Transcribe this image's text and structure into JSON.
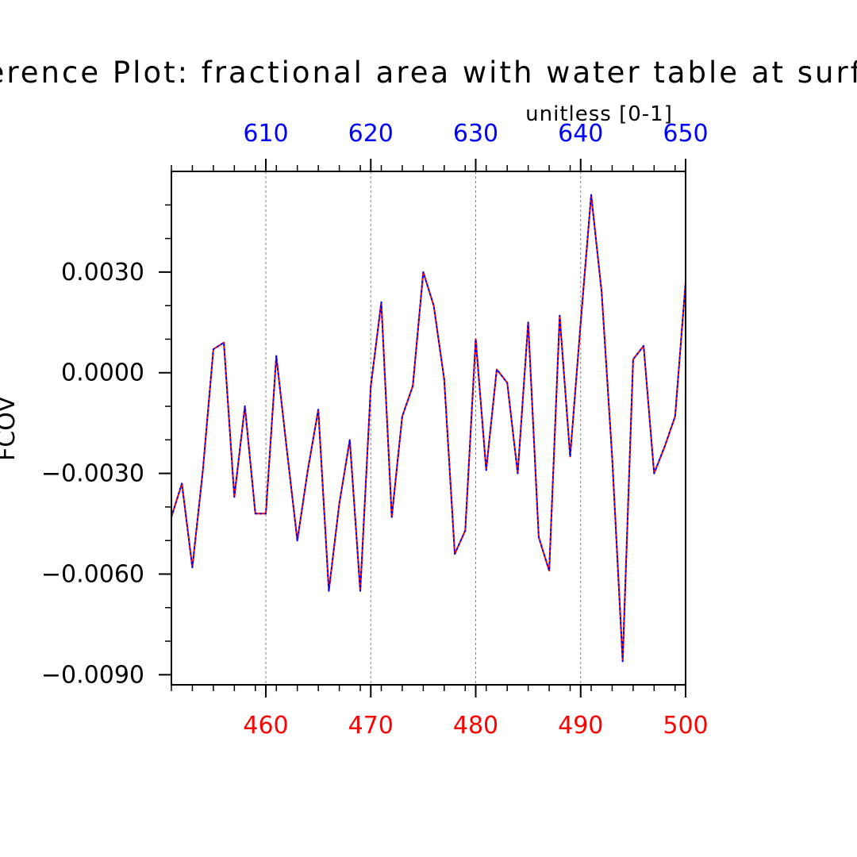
{
  "chart_data": {
    "type": "line",
    "title": "ference Plot: fractional area with water table at surfa",
    "units_label": "unitless [0-1]",
    "ylabel": "FCOV",
    "xlabel": "",
    "xlim": [
      451,
      500
    ],
    "x2lim": [
      601,
      650
    ],
    "ylim": [
      -0.0093,
      0.006
    ],
    "x_ticks": [
      "460",
      "470",
      "480",
      "490",
      "500"
    ],
    "x_tick_values": [
      460,
      470,
      480,
      490,
      500
    ],
    "x2_ticks": [
      "610",
      "620",
      "630",
      "640",
      "650"
    ],
    "x2_tick_values": [
      610,
      620,
      630,
      640,
      650
    ],
    "y_ticks": [
      "0.0030",
      "0.0000",
      "−0.0030",
      "−0.0060",
      "−0.0090"
    ],
    "y_tick_values": [
      0.003,
      0.0,
      -0.003,
      -0.006,
      -0.009
    ],
    "grid": "vertical dashed at major x ticks",
    "x": [
      451,
      452,
      453,
      454,
      455,
      456,
      457,
      458,
      459,
      460,
      461,
      462,
      463,
      464,
      465,
      466,
      467,
      468,
      469,
      470,
      471,
      472,
      473,
      474,
      475,
      476,
      477,
      478,
      479,
      480,
      481,
      482,
      483,
      484,
      485,
      486,
      487,
      488,
      489,
      490,
      491,
      492,
      493,
      494,
      495,
      496,
      497,
      498,
      499,
      500
    ],
    "series": [
      {
        "name": "bottom-axis series",
        "color": "#ff0000",
        "values": [
          -0.0043,
          -0.0033,
          -0.0058,
          -0.0029,
          0.0007,
          0.0009,
          -0.0037,
          -0.001,
          -0.0042,
          -0.0042,
          0.0005,
          -0.0023,
          -0.005,
          -0.0029,
          -0.0011,
          -0.0065,
          -0.0039,
          -0.002,
          -0.0065,
          -0.0004,
          0.0021,
          -0.0043,
          -0.0013,
          -0.0004,
          0.003,
          0.002,
          -0.0002,
          -0.0054,
          -0.0047,
          0.001,
          -0.0029,
          0.0001,
          -0.0003,
          -0.003,
          0.0015,
          -0.0049,
          -0.0059,
          0.0017,
          -0.0025,
          0.0015,
          0.0053,
          0.0024,
          -0.0025,
          -0.0086,
          0.0004,
          0.0008,
          -0.003,
          -0.0022,
          -0.0013,
          0.0027
        ]
      },
      {
        "name": "top-axis series",
        "color": "#0000ff",
        "values": [
          -0.0043,
          -0.0033,
          -0.0058,
          -0.0029,
          0.0007,
          0.0009,
          -0.0037,
          -0.001,
          -0.0042,
          -0.0042,
          0.0005,
          -0.0023,
          -0.005,
          -0.0029,
          -0.0011,
          -0.0065,
          -0.0039,
          -0.002,
          -0.0065,
          -0.0004,
          0.0021,
          -0.0043,
          -0.0013,
          -0.0004,
          0.003,
          0.002,
          -0.0002,
          -0.0054,
          -0.0047,
          0.001,
          -0.0029,
          0.0001,
          -0.0003,
          -0.003,
          0.0015,
          -0.0049,
          -0.0059,
          0.0017,
          -0.0025,
          0.0015,
          0.0053,
          0.0024,
          -0.0025,
          -0.0086,
          0.0004,
          0.0008,
          -0.003,
          -0.0022,
          -0.0013,
          0.0027
        ]
      }
    ]
  }
}
